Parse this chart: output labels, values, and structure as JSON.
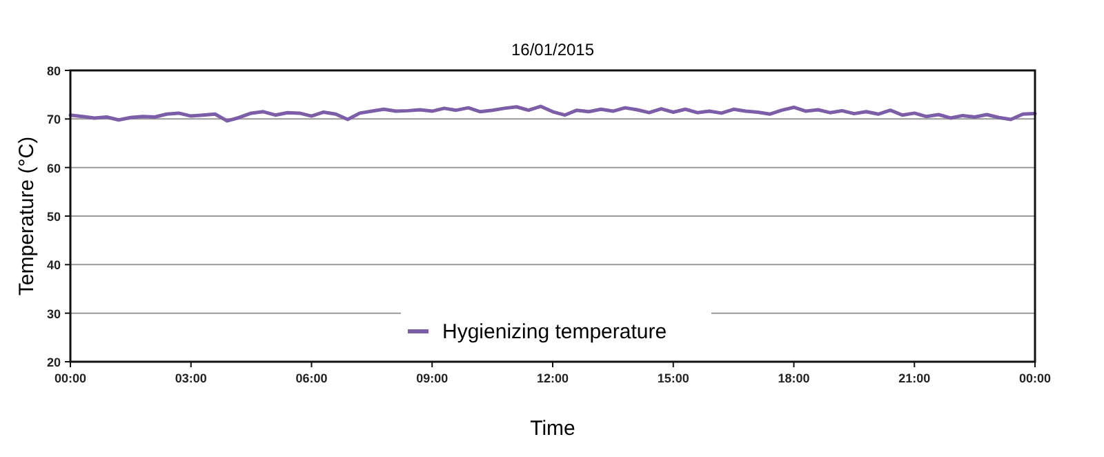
{
  "chart_data": {
    "type": "line",
    "title": "16/01/2015",
    "xlabel": "Time",
    "ylabel": "Temperature (°C)",
    "xlim": [
      0,
      24
    ],
    "xticks": [
      {
        "value": 0,
        "label": "00:00"
      },
      {
        "value": 3,
        "label": "03:00"
      },
      {
        "value": 6,
        "label": "06:00"
      },
      {
        "value": 9,
        "label": "09:00"
      },
      {
        "value": 12,
        "label": "12:00"
      },
      {
        "value": 15,
        "label": "15:00"
      },
      {
        "value": 18,
        "label": "18:00"
      },
      {
        "value": 21,
        "label": "21:00"
      },
      {
        "value": 24,
        "label": "00:00"
      }
    ],
    "ylim": [
      20,
      80
    ],
    "yticks": [
      20,
      30,
      40,
      50,
      60,
      70,
      80
    ],
    "grid": "y",
    "legend": "bottom",
    "marker": "none",
    "line_style": "solid",
    "x": [
      0,
      0.3,
      0.6,
      0.9,
      1.2,
      1.5,
      1.8,
      2.1,
      2.4,
      2.7,
      3,
      3.3,
      3.6,
      3.9,
      4.2,
      4.5,
      4.8,
      5.1,
      5.4,
      5.7,
      6,
      6.3,
      6.6,
      6.9,
      7.2,
      7.5,
      7.8,
      8.1,
      8.4,
      8.7,
      9,
      9.3,
      9.6,
      9.9,
      10.2,
      10.5,
      10.8,
      11.1,
      11.4,
      11.7,
      12,
      12.3,
      12.6,
      12.9,
      13.2,
      13.5,
      13.8,
      14.1,
      14.4,
      14.7,
      15,
      15.3,
      15.6,
      15.9,
      16.2,
      16.5,
      16.8,
      17.1,
      17.4,
      17.7,
      18,
      18.3,
      18.6,
      18.9,
      19.2,
      19.5,
      19.8,
      20.1,
      20.4,
      20.7,
      21,
      21.3,
      21.6,
      21.9,
      22.2,
      22.5,
      22.8,
      23.1,
      23.4,
      23.7,
      24
    ],
    "series": [
      {
        "name": "Hygienizing temperature",
        "color": "#7b5ea7",
        "values": [
          70.8,
          70.5,
          70.2,
          70.4,
          69.8,
          70.3,
          70.5,
          70.4,
          71,
          71.2,
          70.6,
          70.8,
          71,
          69.6,
          70.3,
          71.2,
          71.5,
          70.8,
          71.3,
          71.2,
          70.6,
          71.4,
          71,
          69.9,
          71.2,
          71.6,
          72,
          71.6,
          71.7,
          71.9,
          71.6,
          72.2,
          71.8,
          72.3,
          71.5,
          71.8,
          72.2,
          72.5,
          71.8,
          72.6,
          71.5,
          70.8,
          71.8,
          71.5,
          72,
          71.6,
          72.3,
          71.9,
          71.3,
          72.1,
          71.4,
          72,
          71.3,
          71.6,
          71.2,
          72,
          71.6,
          71.4,
          71,
          71.8,
          72.4,
          71.6,
          71.9,
          71.3,
          71.7,
          71.1,
          71.5,
          71,
          71.8,
          70.8,
          71.2,
          70.5,
          70.9,
          70.2,
          70.7,
          70.4,
          70.9,
          70.3,
          69.9,
          71,
          71.1
        ]
      }
    ]
  }
}
